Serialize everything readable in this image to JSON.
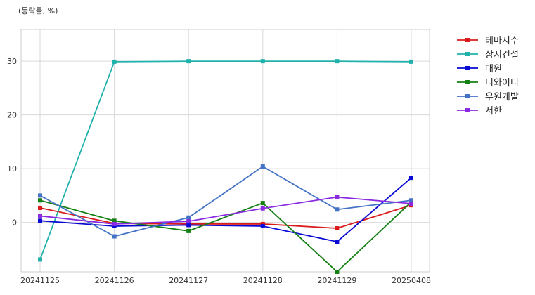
{
  "chart_data": {
    "type": "line",
    "title": "",
    "unit_label": "(등락률, %)",
    "xlabel": "",
    "ylabel": "",
    "categories": [
      "20241125",
      "20241126",
      "20241127",
      "20241128",
      "20241129",
      "20250408"
    ],
    "y_ticks": [
      0,
      10,
      20,
      30
    ],
    "ylim": [
      -9.2,
      35.9
    ],
    "grid": true,
    "legend_position": "outside-right-top",
    "series": [
      {
        "name": "테마지수",
        "color": "#d91b1b",
        "values": [
          2.7,
          -0.2,
          -0.3,
          -0.3,
          -1.1,
          3.2
        ]
      },
      {
        "name": "상지건설",
        "color": "#20b2aa",
        "values": [
          -6.9,
          29.9,
          30.0,
          30.0,
          30.0,
          29.9
        ]
      },
      {
        "name": "대원",
        "color": "#0a0ad6",
        "values": [
          0.3,
          -0.7,
          -0.5,
          -0.7,
          -3.6,
          8.3
        ]
      },
      {
        "name": "디와이디",
        "color": "#148014",
        "values": [
          4.1,
          0.3,
          -1.6,
          3.6,
          -9.2,
          3.8
        ]
      },
      {
        "name": "우원개발",
        "color": "#4472c4",
        "values": [
          5.0,
          -2.6,
          0.9,
          10.4,
          2.4,
          4.1
        ]
      },
      {
        "name": "서한",
        "color": "#8a2be2",
        "values": [
          1.2,
          -0.3,
          0.2,
          2.6,
          4.7,
          3.5
        ]
      }
    ]
  }
}
